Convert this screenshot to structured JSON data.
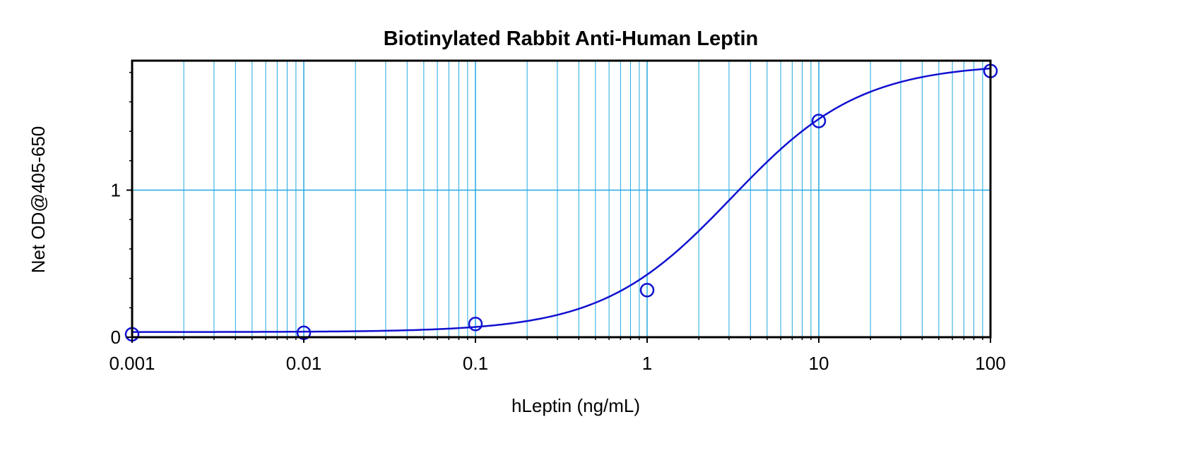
{
  "chart_data": {
    "type": "scatter",
    "title": "Biotinylated Rabbit Anti-Human Leptin",
    "xlabel": "hLeptin (ng/mL)",
    "ylabel": "Net OD@405-650",
    "x_scale": "log",
    "y_scale": "linear",
    "xlim": [
      0.001,
      100
    ],
    "ylim": [
      0,
      1.88
    ],
    "grid": true,
    "x_ticks": [
      {
        "value": 0.001,
        "label": "0.001"
      },
      {
        "value": 0.01,
        "label": "0.01"
      },
      {
        "value": 0.1,
        "label": "0.1"
      },
      {
        "value": 1,
        "label": "1"
      },
      {
        "value": 10,
        "label": "10"
      },
      {
        "value": 100,
        "label": "100"
      }
    ],
    "y_ticks": [
      {
        "value": 0,
        "label": "0"
      },
      {
        "value": 1,
        "label": "1"
      }
    ],
    "series": [
      {
        "marker": "circle",
        "x": [
          0.001,
          0.01,
          0.1,
          1,
          10,
          100
        ],
        "y": [
          0.02,
          0.03,
          0.09,
          0.32,
          1.47,
          1.81
        ]
      }
    ],
    "fit_curve": {
      "model": "4PL",
      "bottom": 0.035,
      "top": 1.86,
      "ec50": 3.1,
      "hill": 1.15
    },
    "colors": {
      "series": "#1010d0",
      "grid": "#22a8e0",
      "frame": "#000000"
    }
  }
}
